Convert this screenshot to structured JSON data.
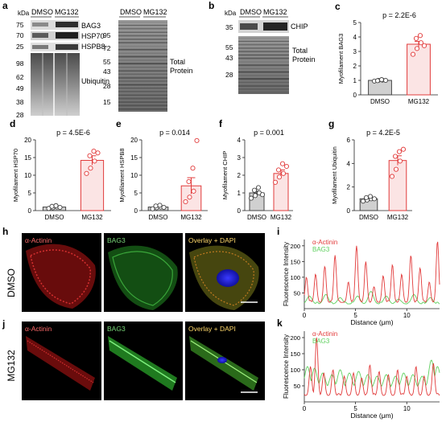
{
  "panels": {
    "a": {
      "letter": "a",
      "lane_labels": [
        "DMSO",
        "MG132"
      ],
      "kda_label": "kDa",
      "left_markers": [
        "75",
        "70",
        "25",
        "98",
        "62",
        "49",
        "38",
        "28"
      ],
      "band_labels": [
        "BAG3",
        "HSP70",
        "HSPB8",
        "Ubiquitin"
      ],
      "right_markers": [
        "95",
        "72",
        "55",
        "43",
        "28",
        "15"
      ],
      "total_protein": [
        "Total",
        "Protein"
      ]
    },
    "b": {
      "letter": "b",
      "lane_labels": [
        "DMSO",
        "MG132"
      ],
      "kda_label": "kDa",
      "markers": [
        "35",
        "55",
        "43",
        "28"
      ],
      "band_label": "CHIP",
      "total_protein": [
        "Total",
        "Protein"
      ]
    },
    "h": {
      "letter": "h",
      "row_label": "DMSO",
      "labels": [
        "α-Actinin",
        "BAG3",
        "Overlay + DAPI"
      ]
    },
    "j": {
      "letter": "j",
      "row_label": "MG132",
      "labels": [
        "α-Actinin",
        "BAG3",
        "Overlay + DAPI"
      ]
    }
  },
  "chart_data": [
    {
      "id": "c",
      "type": "bar",
      "letter": "c",
      "title": "p = 2.2E-6",
      "ylabel": "Myofilament BAG3",
      "categories": [
        "DMSO",
        "MG132"
      ],
      "ylim": [
        0,
        5
      ],
      "yticks": [
        0,
        1,
        2,
        3,
        4,
        5
      ],
      "values": [
        1.0,
        3.5
      ],
      "errors": [
        0.05,
        0.2
      ],
      "points": [
        [
          0.95,
          1.0,
          1.02,
          0.98,
          1.05,
          1.0
        ],
        [
          2.8,
          3.2,
          3.6,
          3.9,
          4.1,
          3.4
        ]
      ],
      "colors": {
        "fill": [
          "#d0d0d0",
          "#fbe4e4"
        ],
        "stroke": [
          "#444444",
          "#e23b3b"
        ]
      }
    },
    {
      "id": "d",
      "type": "bar",
      "letter": "d",
      "title": "p = 4.5E-6",
      "ylabel": "Myofilament HSP70",
      "categories": [
        "DMSO",
        "MG132"
      ],
      "ylim": [
        0,
        20
      ],
      "yticks": [
        0,
        5,
        10,
        15,
        20
      ],
      "values": [
        1.0,
        14.2
      ],
      "errors": [
        0.3,
        1.3
      ],
      "points": [
        [
          0.6,
          0.8,
          1.0,
          1.2,
          1.4,
          0.9
        ],
        [
          10.5,
          12.0,
          14.0,
          15.5,
          16.8,
          16.3
        ]
      ],
      "colors": {
        "fill": [
          "#d0d0d0",
          "#fbe4e4"
        ],
        "stroke": [
          "#444444",
          "#e23b3b"
        ]
      }
    },
    {
      "id": "e",
      "type": "bar",
      "letter": "e",
      "title": "p = 0.014",
      "ylabel": "Myofilament HSPB8",
      "categories": [
        "DMSO",
        "MG132"
      ],
      "ylim": [
        0,
        20
      ],
      "yticks": [
        0,
        5,
        10,
        15,
        20
      ],
      "values": [
        1.0,
        7.0
      ],
      "errors": [
        0.3,
        2.3
      ],
      "points": [
        [
          0.5,
          0.8,
          1.0,
          1.3,
          1.5,
          0.9
        ],
        [
          2.5,
          3.8,
          5.5,
          8.2,
          12.0,
          19.8
        ]
      ],
      "colors": {
        "fill": [
          "#d0d0d0",
          "#fbe4e4"
        ],
        "stroke": [
          "#444444",
          "#e23b3b"
        ]
      }
    },
    {
      "id": "f",
      "type": "bar",
      "letter": "f",
      "title": "p = 0.001",
      "ylabel": "Myofilament CHIP",
      "categories": [
        "DMSO",
        "MG132"
      ],
      "ylim": [
        0,
        4
      ],
      "yticks": [
        0,
        1,
        2,
        3,
        4
      ],
      "values": [
        1.0,
        2.1
      ],
      "errors": [
        0.1,
        0.2
      ],
      "points": [
        [
          0.7,
          0.85,
          1.0,
          1.15,
          1.3,
          0.9
        ],
        [
          1.6,
          1.9,
          2.1,
          2.3,
          2.65,
          2.5
        ]
      ],
      "colors": {
        "fill": [
          "#d0d0d0",
          "#fbe4e4"
        ],
        "stroke": [
          "#444444",
          "#e23b3b"
        ]
      }
    },
    {
      "id": "g",
      "type": "bar",
      "letter": "g",
      "title": "p = 4.2E-5",
      "ylabel": "Myofilament Ubiquitin",
      "categories": [
        "DMSO",
        "MG132"
      ],
      "ylim": [
        0,
        6
      ],
      "yticks": [
        0,
        2,
        4,
        6
      ],
      "values": [
        1.0,
        4.25
      ],
      "errors": [
        0.1,
        0.4
      ],
      "points": [
        [
          0.8,
          0.9,
          1.0,
          1.1,
          1.2,
          1.0
        ],
        [
          2.9,
          3.5,
          4.2,
          4.6,
          5.0,
          5.2
        ]
      ],
      "colors": {
        "fill": [
          "#d0d0d0",
          "#fbe4e4"
        ],
        "stroke": [
          "#444444",
          "#e23b3b"
        ]
      }
    },
    {
      "id": "i",
      "type": "line",
      "letter": "i",
      "xlabel": "Distance (μm)",
      "ylabel": "Fluorescence Intensity",
      "xlim": [
        0,
        13.2
      ],
      "ylim": [
        0,
        220
      ],
      "xticks": [
        0,
        5,
        10
      ],
      "yticks": [
        50,
        100,
        150,
        200
      ],
      "series": [
        {
          "name": "α-Actinin",
          "color": "#e23b3b",
          "peaks": [
            [
              0.2,
              100
            ],
            [
              1.1,
              110
            ],
            [
              2.0,
              135
            ],
            [
              3.0,
              170
            ],
            [
              4.3,
              85
            ],
            [
              5.1,
              200
            ],
            [
              6.0,
              150
            ],
            [
              6.8,
              70
            ],
            [
              7.7,
              105
            ],
            [
              8.6,
              140
            ],
            [
              9.5,
              110
            ],
            [
              10.4,
              170
            ],
            [
              11.3,
              130
            ],
            [
              12.2,
              85
            ],
            [
              13.0,
              215
            ]
          ]
        },
        {
          "name": "BAG3",
          "color": "#5fd05f",
          "peaks": [
            [
              0.5,
              40
            ],
            [
              2.1,
              45
            ],
            [
              3.5,
              35
            ],
            [
              5.2,
              40
            ],
            [
              6.5,
              55
            ],
            [
              8.0,
              40
            ],
            [
              9.2,
              30
            ],
            [
              10.7,
              45
            ],
            [
              12.3,
              35
            ]
          ]
        }
      ]
    },
    {
      "id": "k",
      "type": "line",
      "letter": "k",
      "xlabel": "Distance (μm)",
      "ylabel": "Fluorescence Intensity",
      "xlim": [
        0,
        13.2
      ],
      "ylim": [
        0,
        220
      ],
      "xticks": [
        0,
        5,
        10
      ],
      "yticks": [
        50,
        100,
        150,
        200
      ],
      "series": [
        {
          "name": "α-Actinin",
          "color": "#e23b3b",
          "peaks": [
            [
              0.6,
              110
            ],
            [
              1.2,
              200
            ],
            [
              1.9,
              90
            ],
            [
              2.8,
              100
            ],
            [
              3.9,
              80
            ],
            [
              4.8,
              90
            ],
            [
              5.6,
              75
            ],
            [
              6.4,
              115
            ],
            [
              7.3,
              95
            ],
            [
              8.2,
              85
            ],
            [
              9.1,
              100
            ],
            [
              10.0,
              80
            ],
            [
              10.9,
              110
            ],
            [
              11.7,
              80
            ],
            [
              12.6,
              120
            ]
          ]
        },
        {
          "name": "BAG3",
          "color": "#5fd05f",
          "peaks": [
            [
              0.3,
              110
            ],
            [
              1.0,
              105
            ],
            [
              1.8,
              90
            ],
            [
              2.7,
              85
            ],
            [
              3.5,
              100
            ],
            [
              4.4,
              90
            ],
            [
              5.3,
              95
            ],
            [
              6.2,
              85
            ],
            [
              7.1,
              80
            ],
            [
              8.0,
              85
            ],
            [
              8.9,
              80
            ],
            [
              9.7,
              90
            ],
            [
              10.6,
              85
            ],
            [
              11.5,
              80
            ],
            [
              12.4,
              130
            ],
            [
              13.0,
              110
            ]
          ]
        }
      ]
    }
  ]
}
